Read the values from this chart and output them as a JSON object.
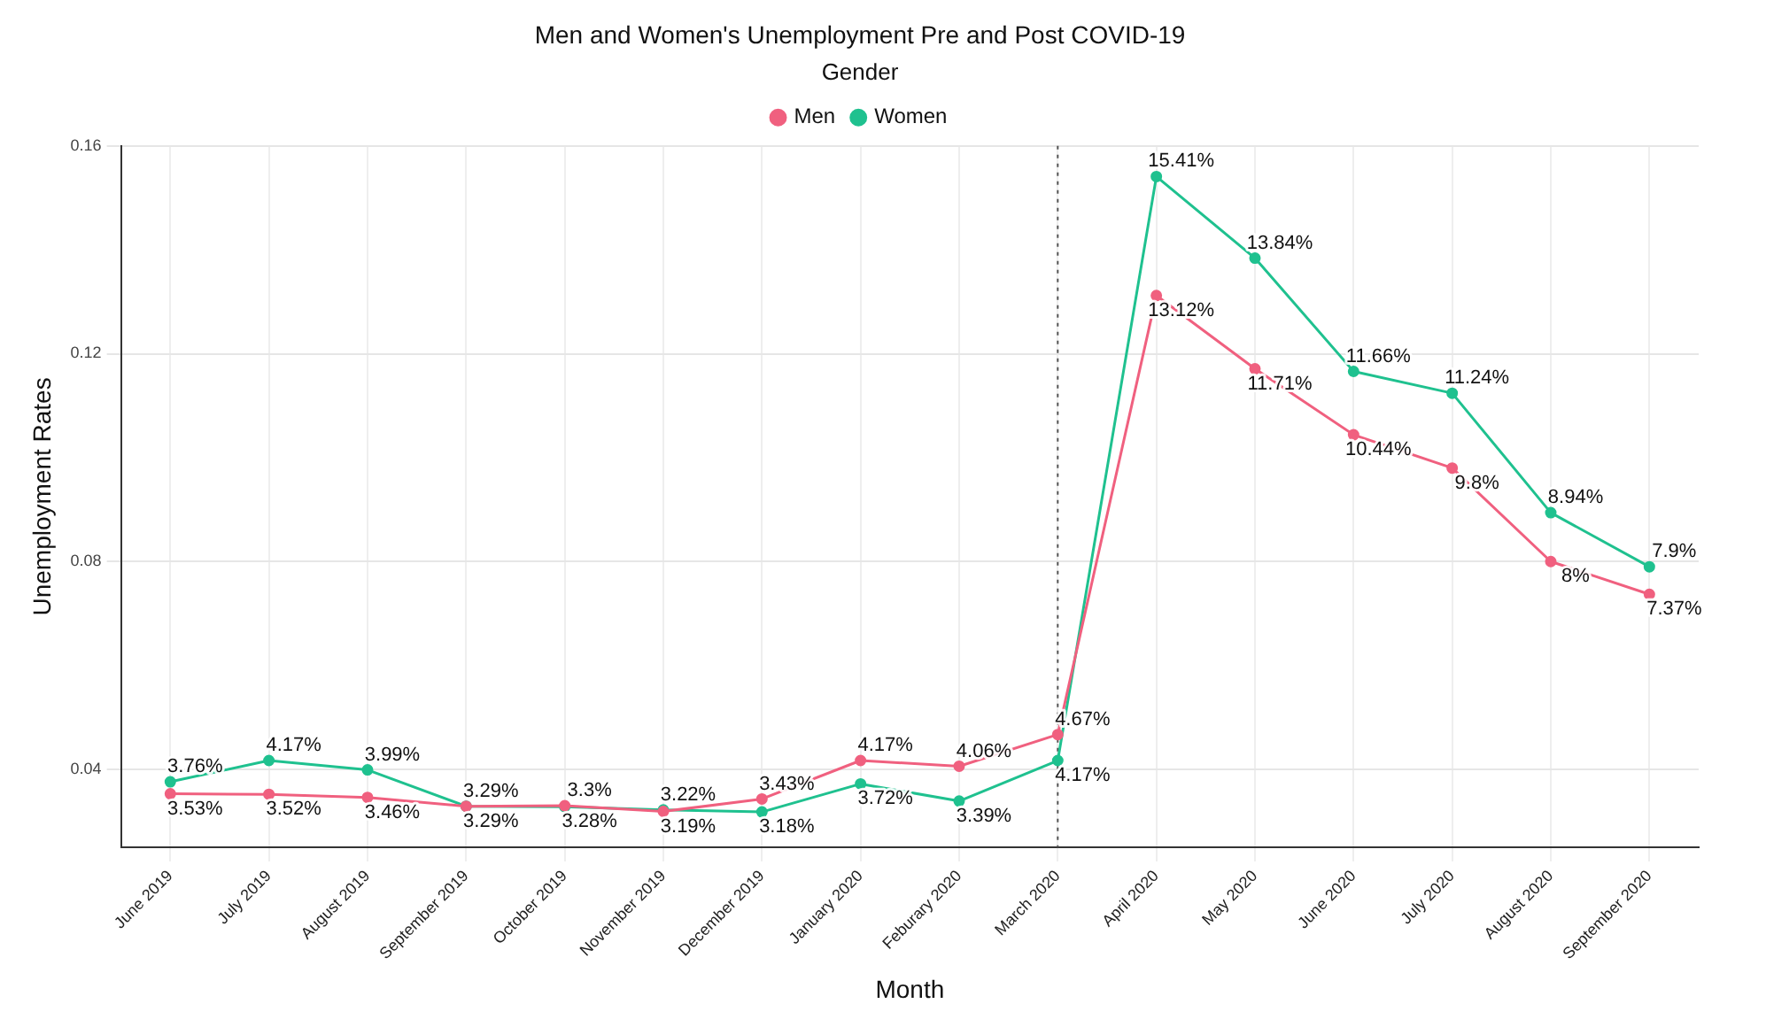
{
  "chart_data": {
    "type": "line",
    "title": "Men and Women's Unemployment Pre and Post COVID-19",
    "xlabel": "Month",
    "ylabel": "Unemployment Rates",
    "legend_title": "Gender",
    "categories": [
      "June 2019",
      "July 2019",
      "August 2019",
      "September 2019",
      "October 2019",
      "November 2019",
      "December 2019",
      "January 2020",
      "Feburary 2020",
      "March 2020",
      "April 2020",
      "May 2020",
      "June 2020",
      "July 2020",
      "August 2020",
      "September 2020"
    ],
    "series": [
      {
        "name": "Men",
        "color": "#f0607f",
        "values": [
          0.0353,
          0.0352,
          0.0346,
          0.0329,
          0.033,
          0.0319,
          0.0343,
          0.0417,
          0.0406,
          0.0467,
          0.1312,
          0.1171,
          0.1044,
          0.098,
          0.08,
          0.0737
        ],
        "value_labels": [
          "3.53%",
          "3.52%",
          "3.46%",
          "3.29%",
          "3.3%",
          "3.19%",
          "3.43%",
          "4.17%",
          "4.06%",
          "4.67%",
          "13.12%",
          "11.71%",
          "10.44%",
          "9.8%",
          "8%",
          "7.37%"
        ]
      },
      {
        "name": "Women",
        "color": "#1fc18f",
        "values": [
          0.0376,
          0.0417,
          0.0399,
          0.0329,
          0.0328,
          0.0322,
          0.0318,
          0.0372,
          0.0339,
          0.0417,
          0.1541,
          0.1384,
          0.1166,
          0.1124,
          0.0894,
          0.079
        ],
        "value_labels": [
          "3.76%",
          "4.17%",
          "3.99%",
          "3.29%",
          "3.28%",
          "3.22%",
          "3.18%",
          "3.72%",
          "3.39%",
          "4.17%",
          "15.41%",
          "13.84%",
          "11.66%",
          "11.24%",
          "8.94%",
          "7.9%"
        ]
      }
    ],
    "ylim": [
      0.025,
      0.16
    ],
    "yticks": [
      0.04,
      0.08,
      0.12,
      0.16
    ],
    "grid": true,
    "legend": "top",
    "marker": "circle",
    "line_style": "solid",
    "ref_lines": [
      {
        "axis": "x",
        "value": "March 2020",
        "line_style": "dotted",
        "color": "#555555"
      }
    ]
  }
}
